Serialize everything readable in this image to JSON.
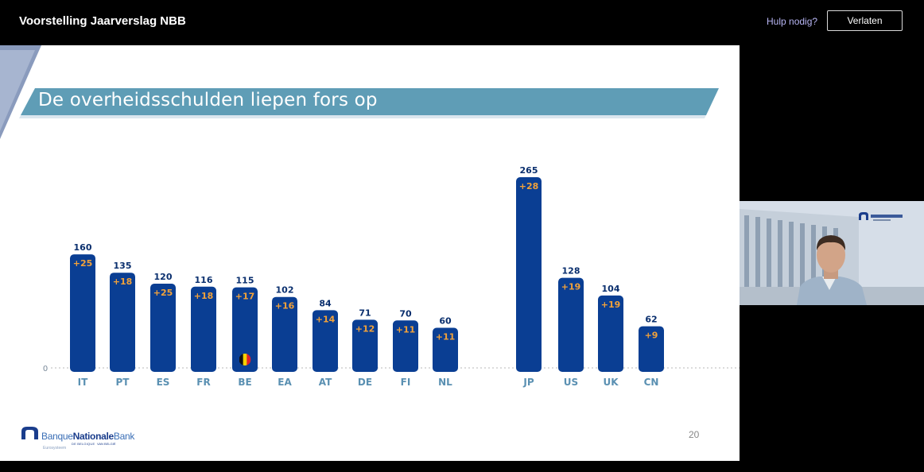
{
  "app": {
    "title": "Voorstelling Jaarverslag NBB",
    "help_label": "Hulp nodig?",
    "leave_label": "Verlaten"
  },
  "slide": {
    "title": "De overheidsschulden liepen fors op",
    "page_number": "20",
    "logo": {
      "word1": "Banque",
      "word2": "Nationale",
      "word3": "Bank",
      "sub1": "DE BELGIQUE",
      "sub2": "VAN BELGIË",
      "eurosystem": "Eurosysteem"
    },
    "colors": {
      "bar": "#0a3e93",
      "change_label": "#f2a23a",
      "value_label": "#0a2f6e",
      "category_label": "#5a90b2",
      "title_band": "#5f9db6"
    }
  },
  "chart_data": {
    "type": "bar",
    "categories": [
      "IT",
      "PT",
      "ES",
      "FR",
      "BE",
      "EA",
      "AT",
      "DE",
      "FI",
      "NL",
      "JP",
      "US",
      "UK",
      "CN"
    ],
    "values": [
      160,
      135,
      120,
      116,
      115,
      102,
      84,
      71,
      70,
      60,
      265,
      128,
      104,
      62
    ],
    "change_labels": [
      "+25",
      "+18",
      "+25",
      "+18",
      "+17",
      "+16",
      "+14",
      "+12",
      "+11",
      "+11",
      "+28",
      "+19",
      "+19",
      "+9"
    ],
    "zero_label": "0",
    "ylim": [
      0,
      265
    ],
    "grid": false,
    "flag_category": "BE",
    "title": "",
    "xlabel": "",
    "ylabel": ""
  },
  "video": {
    "icon": "participant-video-feed"
  }
}
